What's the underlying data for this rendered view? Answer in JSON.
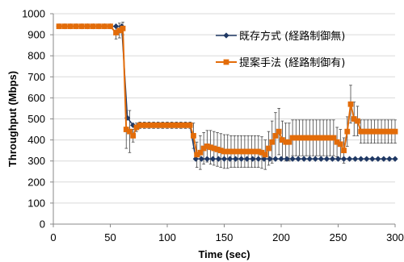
{
  "chart_data": {
    "type": "line",
    "xlabel": "Time (sec)",
    "ylabel": "Throughput (Mbps)",
    "xlim": [
      0,
      300
    ],
    "ylim": [
      0,
      1000
    ],
    "x_ticks": [
      "0",
      "50",
      "100",
      "150",
      "200",
      "250",
      "300"
    ],
    "y_ticks": [
      "0",
      "100",
      "200",
      "300",
      "400",
      "500",
      "600",
      "700",
      "800",
      "900",
      "1000"
    ],
    "grid": "horizontal",
    "legend_position": "top-right",
    "series": [
      {
        "name": "既存方式 (経路制御無)",
        "color": "#1f3864",
        "marker": "diamond",
        "x": [
          5,
          10,
          15,
          20,
          25,
          30,
          35,
          40,
          45,
          50,
          55,
          60,
          65,
          70,
          75,
          80,
          85,
          90,
          95,
          100,
          105,
          110,
          115,
          120,
          125,
          130,
          135,
          140,
          145,
          150,
          155,
          160,
          165,
          170,
          175,
          180,
          185,
          190,
          195,
          200,
          205,
          210,
          215,
          220,
          225,
          230,
          235,
          240,
          245,
          250,
          255,
          260,
          265,
          270,
          275,
          280,
          285,
          290,
          295,
          300
        ],
        "y": [
          940,
          940,
          940,
          940,
          940,
          940,
          940,
          940,
          940,
          940,
          940,
          940,
          505,
          470,
          470,
          470,
          470,
          470,
          470,
          470,
          470,
          470,
          470,
          470,
          310,
          310,
          310,
          310,
          310,
          310,
          310,
          310,
          310,
          310,
          310,
          310,
          310,
          310,
          310,
          310,
          310,
          310,
          310,
          310,
          310,
          310,
          310,
          310,
          310,
          310,
          310,
          310,
          310,
          310,
          310,
          310,
          310,
          310,
          310,
          310
        ]
      },
      {
        "name": "提案手法 (経路制御有)",
        "color": "#e36c09",
        "marker": "square",
        "x": [
          5,
          10,
          15,
          20,
          25,
          30,
          35,
          40,
          45,
          50,
          55,
          58,
          61,
          64,
          67,
          70,
          73,
          76,
          80,
          84,
          88,
          92,
          96,
          100,
          104,
          108,
          112,
          116,
          120,
          123,
          126,
          129,
          132,
          135,
          138,
          141,
          144,
          147,
          150,
          153,
          156,
          159,
          162,
          165,
          168,
          171,
          174,
          177,
          180,
          183,
          186,
          189,
          192,
          195,
          198,
          201,
          204,
          207,
          210,
          213,
          216,
          219,
          222,
          225,
          228,
          231,
          234,
          237,
          240,
          243,
          246,
          249,
          252,
          255,
          258,
          261,
          264,
          267,
          270,
          273,
          276,
          279,
          282,
          285,
          288,
          291,
          294,
          297,
          300
        ],
        "y": [
          940,
          940,
          940,
          940,
          940,
          940,
          940,
          940,
          940,
          940,
          910,
          920,
          930,
          450,
          440,
          420,
          460,
          470,
          470,
          470,
          470,
          470,
          470,
          470,
          470,
          470,
          470,
          470,
          470,
          420,
          330,
          340,
          360,
          370,
          365,
          360,
          355,
          350,
          345,
          345,
          345,
          345,
          345,
          345,
          345,
          345,
          345,
          345,
          345,
          340,
          330,
          360,
          390,
          420,
          440,
          400,
          390,
          390,
          410,
          410,
          410,
          410,
          410,
          410,
          410,
          410,
          410,
          410,
          410,
          410,
          410,
          390,
          380,
          350,
          440,
          570,
          500,
          490,
          440,
          440,
          440,
          440,
          440,
          440,
          440,
          440,
          440,
          440,
          440
        ],
        "err": [
          0,
          0,
          0,
          0,
          0,
          0,
          0,
          0,
          0,
          0,
          30,
          35,
          30,
          90,
          100,
          30,
          20,
          15,
          15,
          15,
          15,
          15,
          15,
          15,
          15,
          15,
          15,
          15,
          15,
          60,
          60,
          80,
          75,
          75,
          80,
          80,
          80,
          80,
          80,
          80,
          75,
          75,
          75,
          75,
          75,
          75,
          75,
          75,
          75,
          75,
          70,
          80,
          100,
          110,
          110,
          90,
          90,
          90,
          85,
          85,
          85,
          85,
          85,
          85,
          85,
          85,
          85,
          85,
          85,
          85,
          85,
          70,
          70,
          60,
          70,
          90,
          80,
          70,
          55,
          55,
          55,
          55,
          55,
          55,
          55,
          55,
          55,
          55,
          55
        ]
      }
    ]
  }
}
